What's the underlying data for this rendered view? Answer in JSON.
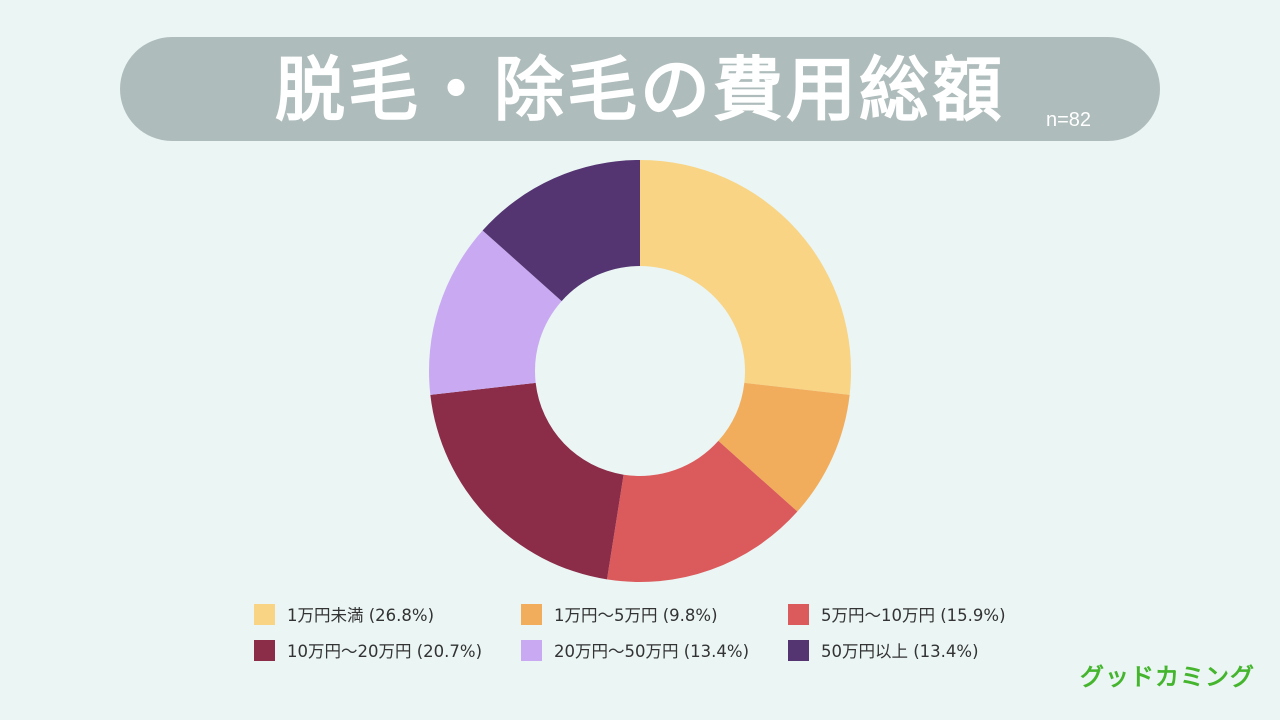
{
  "header": {
    "title": "脱毛・除毛の費用総額",
    "sample_size": "n=82"
  },
  "brand": {
    "logo_text": "グッドカミング"
  },
  "colors": {
    "background": "#eaf5f4",
    "title_banner": "#aebcbb",
    "brand_green": "#44b52d"
  },
  "chart_data": {
    "type": "pie",
    "style": "donut",
    "title": "脱毛・除毛の費用総額",
    "sample_size": "n=82",
    "start_angle": "12 o'clock, clockwise",
    "series": [
      {
        "name": "1万円未満",
        "value": 26.8,
        "label": "1万円未満 (26.8%)",
        "color": "#f8d484"
      },
      {
        "name": "1万円〜5万円",
        "value": 9.8,
        "label": "1万円〜5万円 (9.8%)",
        "color": "#f2ad5c"
      },
      {
        "name": "5万円〜10万円",
        "value": 15.9,
        "label": "5万円〜10万円 (15.9%)",
        "color": "#db5b5c"
      },
      {
        "name": "10万円〜20万円",
        "value": 20.7,
        "label": "10万円〜20万円 (20.7%)",
        "color": "#8b2c48"
      },
      {
        "name": "20万円〜50万円",
        "value": 13.4,
        "label": "20万円〜50万円 (13.4%)",
        "color": "#c9aaf2"
      },
      {
        "name": "50万円以上",
        "value": 13.4,
        "label": "50万円以上 (13.4%)",
        "color": "#543571"
      }
    ]
  }
}
